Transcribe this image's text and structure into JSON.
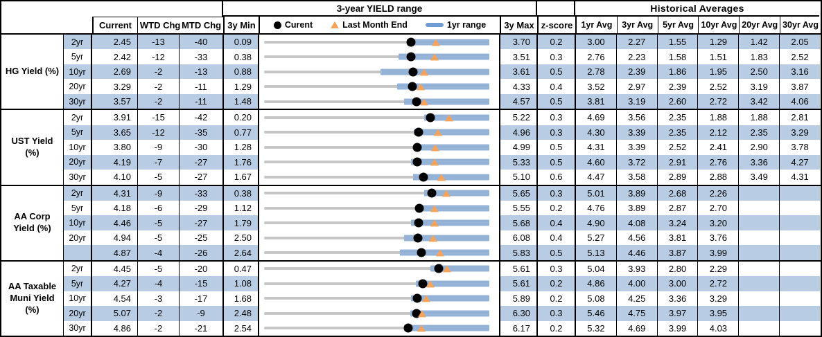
{
  "headers": {
    "range_title": "3-year YIELD range",
    "hist_title": "Historical Averages",
    "current": "Current",
    "wtd": "WTD Chg",
    "mtd": "MTD Chg",
    "min3y": "3y Min",
    "max3y": "3y Max",
    "zscore": "z-score",
    "avg_cols": [
      "1yr Avg",
      "3yr Avg",
      "5yr Avg",
      "10yr Avg",
      "20yr Avg",
      "30yr Avg"
    ],
    "legend": {
      "current": "Curent",
      "last_month_end": "Last Month End",
      "range_1yr": "1yr range"
    }
  },
  "colors": {
    "stripe_blue": "#b8cce4",
    "bar_blue": "#95b3d7",
    "track_gray": "#c6c6c6",
    "triangle_orange": "#f5a25a",
    "dot_black": "#000000"
  },
  "chart_data": {
    "type": "table",
    "note": "Each row contains a bullet/range chart spanning 3y Min to 3y Max: black dot = Current, orange triangle = Last Month End, blue bar = 1yr range",
    "groups": [
      {
        "label": "HG Yield (%)",
        "rows": [
          {
            "tenor": "2yr",
            "current": "2.45",
            "wtd": "-13",
            "mtd": "-40",
            "min": "0.09",
            "max": "3.70",
            "z": "0.2",
            "avgs": [
              "3.00",
              "2.27",
              "1.55",
              "1.29",
              "1.42",
              "2.05"
            ],
            "last_month_end": 2.85,
            "range_1yr": [
              2.38,
              3.7
            ]
          },
          {
            "tenor": "5yr",
            "current": "2.42",
            "wtd": "-12",
            "mtd": "-33",
            "min": "0.38",
            "max": "3.51",
            "z": "0.3",
            "avgs": [
              "2.76",
              "2.23",
              "1.58",
              "1.51",
              "1.83",
              "2.52"
            ],
            "last_month_end": 2.75,
            "range_1yr": [
              2.25,
              3.51
            ]
          },
          {
            "tenor": "10yr",
            "current": "2.69",
            "wtd": "-2",
            "mtd": "-13",
            "min": "0.88",
            "max": "3.61",
            "z": "0.5",
            "avgs": [
              "2.78",
              "2.39",
              "1.86",
              "1.95",
              "2.50",
              "3.16"
            ],
            "last_month_end": 2.82,
            "range_1yr": [
              2.29,
              3.61
            ]
          },
          {
            "tenor": "20yr",
            "current": "3.29",
            "wtd": "-2",
            "mtd": "-11",
            "min": "1.29",
            "max": "4.33",
            "z": "0.4",
            "avgs": [
              "3.52",
              "2.97",
              "2.39",
              "2.52",
              "3.19",
              "3.87"
            ],
            "last_month_end": 3.4,
            "range_1yr": [
              3.09,
              4.33
            ]
          },
          {
            "tenor": "30yr",
            "current": "3.57",
            "wtd": "-2",
            "mtd": "-11",
            "min": "1.48",
            "max": "4.57",
            "z": "0.5",
            "avgs": [
              "3.81",
              "3.19",
              "2.60",
              "2.72",
              "3.42",
              "4.06"
            ],
            "last_month_end": 3.68,
            "range_1yr": [
              3.4,
              4.57
            ]
          }
        ]
      },
      {
        "label": "UST Yield (%)",
        "rows": [
          {
            "tenor": "2yr",
            "current": "3.91",
            "wtd": "-15",
            "mtd": "-42",
            "min": "0.20",
            "max": "5.22",
            "z": "0.3",
            "avgs": [
              "4.69",
              "3.56",
              "2.35",
              "1.88",
              "1.88",
              "2.81"
            ],
            "last_month_end": 4.33,
            "range_1yr": [
              3.77,
              5.22
            ]
          },
          {
            "tenor": "5yr",
            "current": "3.65",
            "wtd": "-12",
            "mtd": "-35",
            "min": "0.77",
            "max": "4.96",
            "z": "0.3",
            "avgs": [
              "4.30",
              "3.39",
              "2.35",
              "2.12",
              "2.35",
              "3.29"
            ],
            "last_month_end": 4.0,
            "range_1yr": [
              3.56,
              4.96
            ]
          },
          {
            "tenor": "10yr",
            "current": "3.80",
            "wtd": "-9",
            "mtd": "-30",
            "min": "1.28",
            "max": "4.99",
            "z": "0.5",
            "avgs": [
              "4.31",
              "3.39",
              "2.52",
              "2.41",
              "2.90",
              "3.78"
            ],
            "last_month_end": 4.1,
            "range_1yr": [
              3.75,
              4.99
            ]
          },
          {
            "tenor": "20yr",
            "current": "4.19",
            "wtd": "-7",
            "mtd": "-27",
            "min": "1.76",
            "max": "5.33",
            "z": "0.5",
            "avgs": [
              "4.60",
              "3.72",
              "2.91",
              "2.76",
              "3.36",
              "4.27"
            ],
            "last_month_end": 4.46,
            "range_1yr": [
              4.09,
              5.33
            ]
          },
          {
            "tenor": "30yr",
            "current": "4.10",
            "wtd": "-5",
            "mtd": "-27",
            "min": "1.67",
            "max": "5.10",
            "z": "0.6",
            "avgs": [
              "4.47",
              "3.58",
              "2.89",
              "2.88",
              "3.49",
              "4.31"
            ],
            "last_month_end": 4.37,
            "range_1yr": [
              3.94,
              5.1
            ]
          }
        ]
      },
      {
        "label": "AA Corp Yield (%)",
        "rows": [
          {
            "tenor": "2yr",
            "current": "4.31",
            "wtd": "-9",
            "mtd": "-33",
            "min": "0.38",
            "max": "5.65",
            "z": "0.3",
            "avgs": [
              "5.01",
              "3.89",
              "2.68",
              "2.26",
              "",
              ""
            ],
            "last_month_end": 4.64,
            "range_1yr": [
              4.13,
              5.65
            ]
          },
          {
            "tenor": "5yr",
            "current": "4.18",
            "wtd": "-6",
            "mtd": "-29",
            "min": "1.12",
            "max": "5.55",
            "z": "0.2",
            "avgs": [
              "4.76",
              "3.89",
              "2.87",
              "2.70",
              "",
              ""
            ],
            "last_month_end": 4.47,
            "range_1yr": [
              4.12,
              5.55
            ]
          },
          {
            "tenor": "10yr",
            "current": "4.46",
            "wtd": "-5",
            "mtd": "-27",
            "min": "1.79",
            "max": "5.68",
            "z": "0.4",
            "avgs": [
              "4.90",
              "4.08",
              "3.24",
              "3.20",
              "",
              ""
            ],
            "last_month_end": 4.73,
            "range_1yr": [
              4.33,
              5.68
            ]
          },
          {
            "tenor": "20yr",
            "current": "4.94",
            "wtd": "-5",
            "mtd": "-25",
            "min": "2.50",
            "max": "6.08",
            "z": "0.4",
            "avgs": [
              "5.27",
              "4.56",
              "3.81",
              "3.76",
              "",
              ""
            ],
            "last_month_end": 5.19,
            "range_1yr": [
              4.73,
              6.08
            ]
          },
          {
            "tenor": "",
            "current": "4.87",
            "wtd": "-4",
            "mtd": "-26",
            "min": "2.64",
            "max": "5.83",
            "z": "0.5",
            "avgs": [
              "5.13",
              "4.46",
              "3.87",
              "3.99",
              "",
              ""
            ],
            "last_month_end": 5.13,
            "range_1yr": [
              4.56,
              5.83
            ]
          }
        ]
      },
      {
        "label": "AA Taxable Muni Yield (%)",
        "rows": [
          {
            "tenor": "2yr",
            "current": "4.45",
            "wtd": "-5",
            "mtd": "-20",
            "min": "0.47",
            "max": "5.61",
            "z": "0.3",
            "avgs": [
              "5.04",
              "3.93",
              "2.80",
              "2.29",
              "",
              ""
            ],
            "last_month_end": 4.65,
            "range_1yr": [
              4.26,
              5.61
            ]
          },
          {
            "tenor": "5yr",
            "current": "4.27",
            "wtd": "-4",
            "mtd": "-15",
            "min": "1.08",
            "max": "5.61",
            "z": "0.2",
            "avgs": [
              "4.86",
              "4.00",
              "3.00",
              "2.72",
              "",
              ""
            ],
            "last_month_end": 4.42,
            "range_1yr": [
              4.13,
              5.61
            ]
          },
          {
            "tenor": "10yr",
            "current": "4.54",
            "wtd": "-3",
            "mtd": "-17",
            "min": "1.68",
            "max": "5.89",
            "z": "0.2",
            "avgs": [
              "5.08",
              "4.25",
              "3.36",
              "3.29",
              "",
              ""
            ],
            "last_month_end": 4.71,
            "range_1yr": [
              4.42,
              5.89
            ]
          },
          {
            "tenor": "20yr",
            "current": "5.07",
            "wtd": "-2",
            "mtd": "-9",
            "min": "2.48",
            "max": "6.30",
            "z": "0.3",
            "avgs": [
              "5.46",
              "4.75",
              "3.97",
              "3.95",
              "",
              ""
            ],
            "last_month_end": 5.16,
            "range_1yr": [
              4.96,
              6.3
            ]
          },
          {
            "tenor": "30yr",
            "current": "4.86",
            "wtd": "-2",
            "mtd": "-21",
            "min": "2.54",
            "max": "6.17",
            "z": "0.2",
            "avgs": [
              "5.32",
              "4.69",
              "3.99",
              "4.03",
              "",
              ""
            ],
            "last_month_end": 5.07,
            "range_1yr": [
              4.8,
              6.17
            ]
          }
        ]
      }
    ]
  }
}
